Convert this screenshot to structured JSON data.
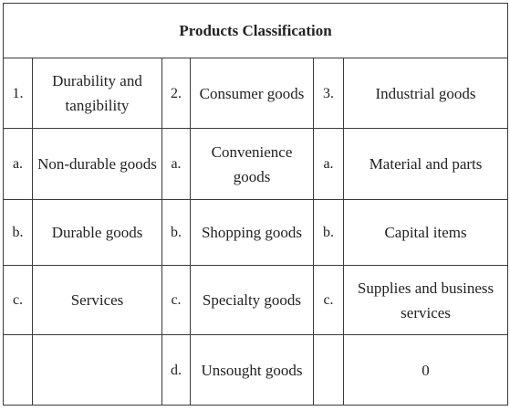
{
  "table": {
    "title": "Products Classification",
    "rows": [
      [
        "1.",
        "Durability and tangibility",
        "2.",
        "Consumer goods",
        "3.",
        "Industrial goods"
      ],
      [
        "a.",
        "Non-durable goods",
        "a.",
        "Convenience goods",
        "a.",
        "Material and parts"
      ],
      [
        "b.",
        "Durable goods",
        "b.",
        "Shopping goods",
        "b.",
        "Capital items"
      ],
      [
        "c.",
        "Services",
        "c.",
        "Specialty goods",
        "c.",
        "Supplies and business services"
      ],
      [
        null,
        null,
        "d.",
        "Unsought goods",
        null,
        "0"
      ]
    ]
  }
}
